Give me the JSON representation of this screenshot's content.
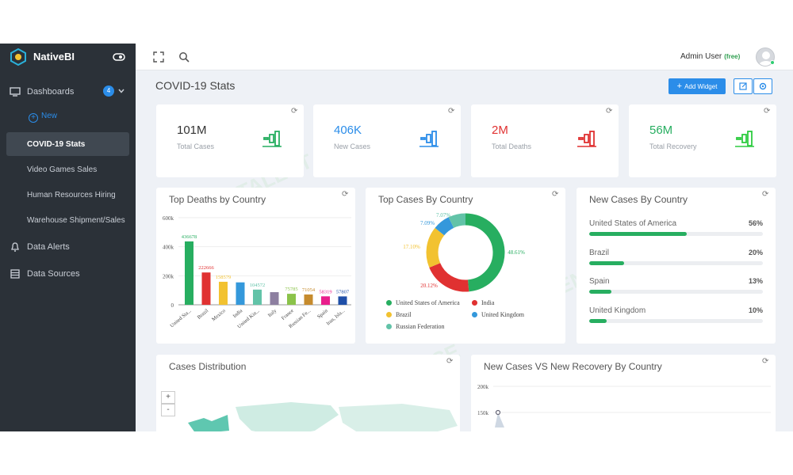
{
  "app": {
    "name": "NativeBI"
  },
  "sidebar": {
    "dashboards_label": "Dashboards",
    "dashboards_count": "4",
    "new_label": "New",
    "items": [
      {
        "label": "COVID-19 Stats",
        "active": true
      },
      {
        "label": "Video Games Sales"
      },
      {
        "label": "Human Resources Hiring"
      },
      {
        "label": "Warehouse Shipment/Sales"
      }
    ],
    "data_alerts_label": "Data Alerts",
    "data_sources_label": "Data Sources"
  },
  "topbar": {
    "user_name": "Admin User",
    "user_plan": "(free)",
    "icons": [
      "fullscreen-icon",
      "search-icon"
    ]
  },
  "page": {
    "title": "COVID-19 Stats",
    "add_widget_label": "Add Widget"
  },
  "stats": [
    {
      "value": "101M",
      "label": "Total Cases",
      "color": "#333333",
      "icon_color": "#27ae60"
    },
    {
      "value": "406K",
      "label": "New Cases",
      "color": "#2b8de9",
      "icon_color": "#2b8de9"
    },
    {
      "value": "2M",
      "label": "Total Deaths",
      "color": "#e03131",
      "icon_color": "#e03131"
    },
    {
      "value": "56M",
      "label": "Total Recovery",
      "color": "#27ae60",
      "icon_color": "#2ecc40"
    }
  ],
  "widgets": {
    "deaths_title": "Top Deaths by Country",
    "cases_title": "Top Cases By Country",
    "new_cases_title": "New Cases By Country",
    "distribution_title": "Cases Distribution",
    "recovery_title": "New Cases VS New Recovery By Country"
  },
  "new_cases_by_country": [
    {
      "country": "United States of America",
      "pct": "56%",
      "value": 0.56
    },
    {
      "country": "Brazil",
      "pct": "20%",
      "value": 0.2
    },
    {
      "country": "Spain",
      "pct": "13%",
      "value": 0.13
    },
    {
      "country": "United Kingdom",
      "pct": "10%",
      "value": 0.1
    }
  ],
  "map": {
    "zoom_in": "+",
    "zoom_out": "-"
  },
  "chart_data": [
    {
      "type": "bar",
      "title": "Top Deaths by Country",
      "categories": [
        "United Sta...",
        "Brazil",
        "Mexico",
        "India",
        "United Kin...",
        "Italy",
        "France",
        "Russian Fe...",
        "Spain",
        "Iran, Isla..."
      ],
      "values": [
        436678,
        222666,
        158579,
        154486,
        104572,
        87000,
        75785,
        71054,
        58319,
        57807
      ],
      "value_labels": [
        "436678",
        "222666",
        "158579",
        "",
        "104572",
        "",
        "75785",
        "71054",
        "58319",
        "57807"
      ],
      "colors": [
        "#27ae60",
        "#e03131",
        "#f2c230",
        "#3498db",
        "#62c3a8",
        "#8d7fa0",
        "#8bc34a",
        "#c68b2d",
        "#e91e8c",
        "#1f4fa8"
      ],
      "yticks": [
        "0",
        "200k",
        "400k",
        "600k"
      ],
      "ylim": [
        0,
        600000
      ]
    },
    {
      "type": "pie",
      "title": "Top Cases By Country",
      "labels": [
        "United States of America",
        "India",
        "Brazil",
        "United Kingdom",
        "Russian Federation"
      ],
      "values": [
        48.61,
        20.12,
        17.1,
        7.09,
        7.07
      ],
      "value_labels": [
        "48.61%",
        "20.12%",
        "17.10%",
        "7.09%",
        "7.07%"
      ],
      "colors": [
        "#27ae60",
        "#e03131",
        "#f2c230",
        "#3498db",
        "#62c3a8"
      ]
    },
    {
      "type": "line",
      "title": "New Cases VS New Recovery By Country",
      "yticks": [
        "150k",
        "200k"
      ],
      "ylim": [
        0,
        200000
      ],
      "series": [
        {
          "values": [
            150000
          ]
        }
      ]
    }
  ]
}
